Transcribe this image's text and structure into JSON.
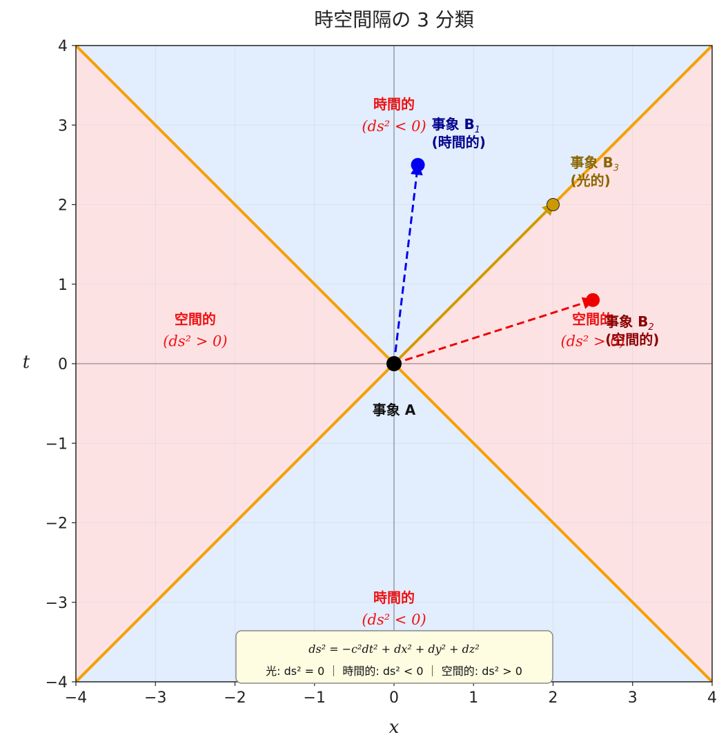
{
  "chart_data": {
    "type": "scatter",
    "title": "時空間隔の 3 分類",
    "xlabel": "x",
    "ylabel": "t",
    "xlim": [
      -4,
      4
    ],
    "ylim": [
      -4,
      4
    ],
    "xticks": [
      "−4",
      "−3",
      "−2",
      "−1",
      "0",
      "1",
      "2",
      "3",
      "4"
    ],
    "yticks": [
      "−4",
      "−3",
      "−2",
      "−1",
      "0",
      "1",
      "2",
      "3",
      "4"
    ],
    "grid": true,
    "colors": {
      "timelike_fill": "#e2edfd",
      "spacelike_fill": "#fde2e4",
      "light_cone": "#f5a000",
      "timelike": "#0000ee",
      "spacelike": "#ee0000",
      "lightlike": "#cc9900",
      "origin": "#000000"
    },
    "light_cone_lines": [
      {
        "x": [
          -4,
          4
        ],
        "t": [
          -4,
          4
        ]
      },
      {
        "x": [
          -4,
          4
        ],
        "t": [
          4,
          -4
        ]
      }
    ],
    "events": [
      {
        "id": "A",
        "label": "事象 A",
        "x": 0,
        "t": 0,
        "color": "#000000"
      },
      {
        "id": "B1",
        "label_line1": "事象 B",
        "subscript": "1",
        "label_line2": "(時間的)",
        "x": 0.3,
        "t": 2.5,
        "color": "#0000ee",
        "text_color": "#00008b"
      },
      {
        "id": "B2",
        "label_line1": "事象 B",
        "subscript": "2",
        "label_line2": "(空間的)",
        "x": 2.5,
        "t": 0.8,
        "color": "#ee0000",
        "text_color": "#8b0000"
      },
      {
        "id": "B3",
        "label_line1": "事象 B",
        "subscript": "3",
        "label_line2": "(光的)",
        "x": 2.0,
        "t": 2.0,
        "color": "#cc9900",
        "text_color": "#8b6500"
      }
    ],
    "regions": [
      {
        "label": "時間的",
        "math": "(ds² < 0)",
        "x": 0,
        "t": 3.2
      },
      {
        "label": "時間的",
        "math": "(ds² < 0)",
        "x": 0,
        "t": -3.0
      },
      {
        "label": "空間的",
        "math": "(ds² > 0)",
        "x": -2.5,
        "t": 0.5
      },
      {
        "label": "空間的",
        "math": "(ds² > 0)",
        "x": 2.5,
        "t": 0.5
      }
    ],
    "annotation": {
      "formula": "ds² = −c²dt² + dx² + dy² + dz²",
      "summary": "光: ds² = 0 ｜ 時間的: ds² < 0 ｜ 空間的: ds² > 0"
    }
  }
}
